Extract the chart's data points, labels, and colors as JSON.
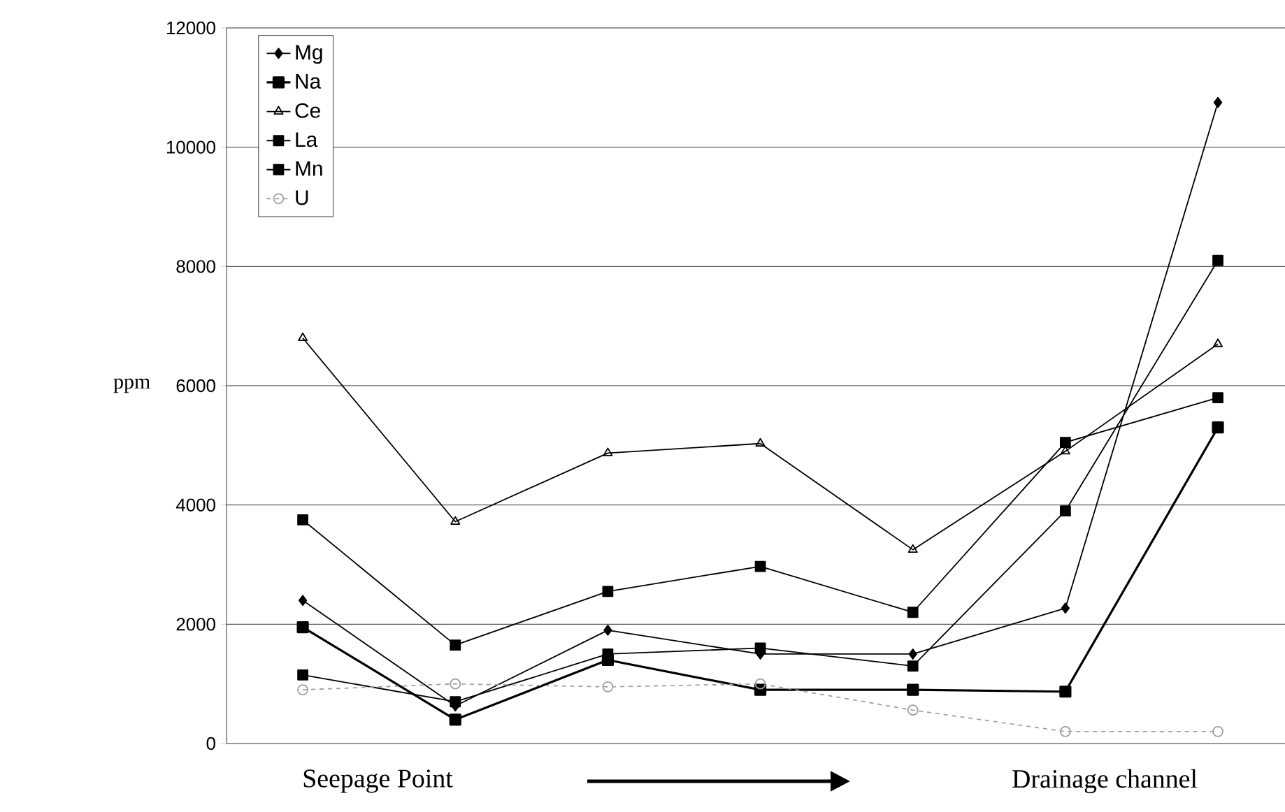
{
  "chart_data": {
    "type": "line",
    "ylabel": "ppm",
    "categories": [
      null,
      null,
      null,
      null,
      null,
      null,
      null
    ],
    "ylim": [
      0,
      12000
    ],
    "yticks": [
      0,
      2000,
      4000,
      6000,
      8000,
      10000,
      12000
    ],
    "grid": "y",
    "legend": "top left",
    "line_style": "solid",
    "annotations": [
      "Seepage Point",
      "Drainage channel"
    ],
    "series": [
      {
        "name": "Mg",
        "color": "#000000",
        "marker": "diamond",
        "values": [
          2400,
          630,
          1900,
          1500,
          1500,
          2270,
          10750
        ]
      },
      {
        "name": "Na",
        "color": "#000000",
        "marker": "square",
        "values": [
          1950,
          400,
          1400,
          900,
          900,
          870,
          5300
        ]
      },
      {
        "name": "Ce",
        "color": "#000000",
        "marker": "triangle",
        "values": [
          6800,
          3720,
          4870,
          5030,
          3250,
          4900,
          6700
        ]
      },
      {
        "name": "La",
        "color": "#000000",
        "marker": "square",
        "values": [
          1150,
          700,
          1500,
          1600,
          1300,
          3900,
          8100
        ]
      },
      {
        "name": "Mn",
        "color": "#000000",
        "marker": "square",
        "values": [
          3750,
          1650,
          2550,
          2970,
          2200,
          5050,
          5800
        ]
      },
      {
        "name": "U",
        "color": "#a0a0a0",
        "marker": "circle",
        "line_style": "dashed",
        "values": [
          900,
          1000,
          950,
          1000,
          560,
          200,
          200
        ]
      }
    ]
  }
}
